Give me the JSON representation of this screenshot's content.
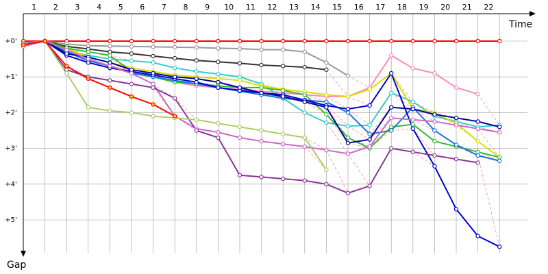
{
  "chart_data": {
    "type": "line",
    "xlabel": "Time",
    "ylabel": "Gap",
    "x_ticks": [
      "1",
      "2",
      "3",
      "4",
      "5",
      "6",
      "7",
      "8",
      "9",
      "10",
      "11",
      "12",
      "13",
      "14",
      "15",
      "16",
      "17",
      "18",
      "19",
      "20",
      "21",
      "22"
    ],
    "y_ticks": [
      "+0'",
      "+1'",
      "+2'",
      "+3'",
      "+4'",
      "+5'"
    ],
    "xlim": [
      1,
      24
    ],
    "ylim": [
      0,
      5.6
    ],
    "y_direction": "down",
    "grid": true,
    "colors": {
      "grid": "#999999",
      "axis": "#000000",
      "connector": "#ff8888"
    },
    "series": [
      {
        "color": "#ff0000",
        "fill": "#ffffff",
        "x": [
          1,
          2,
          3,
          4,
          5,
          6,
          7,
          8,
          9,
          10,
          11,
          12,
          13,
          14,
          15,
          16,
          17,
          18,
          19,
          20,
          21,
          22,
          23
        ],
        "y": [
          0,
          0,
          0,
          0,
          0,
          0,
          0,
          0,
          0,
          0,
          0,
          0,
          0,
          0,
          0,
          0,
          0,
          0,
          0,
          0,
          0,
          0,
          0
        ]
      },
      {
        "color": "#999999",
        "fill": "#ffffff",
        "x": [
          1,
          2,
          3,
          4,
          5,
          6,
          7,
          8,
          9,
          10,
          11,
          12,
          13,
          14,
          15,
          16
        ],
        "y": [
          0.05,
          0,
          0.08,
          0.13,
          0.14,
          0.15,
          0.16,
          0.17,
          0.18,
          0.2,
          0.21,
          0.24,
          0.24,
          0.3,
          0.6,
          0.97
        ]
      },
      {
        "color": "#333333",
        "fill": "#ffffff",
        "x": [
          1,
          2,
          3,
          4,
          5,
          6,
          7,
          8,
          9,
          10,
          11,
          12,
          13,
          14,
          15
        ],
        "y": [
          0.1,
          0,
          0.15,
          0.22,
          0.3,
          0.35,
          0.42,
          0.48,
          0.54,
          0.58,
          0.62,
          0.67,
          0.7,
          0.73,
          0.8
        ]
      },
      {
        "color": "#ff88bb",
        "fill": "#ffffff",
        "x": [
          1,
          2,
          3,
          4,
          5,
          6,
          7,
          8,
          9,
          10,
          11,
          12,
          13,
          14,
          15,
          16,
          17,
          18,
          19,
          20,
          21,
          22
        ],
        "y": [
          0.1,
          0,
          0.2,
          0.5,
          0.7,
          0.85,
          1.0,
          1.15,
          1.25,
          1.3,
          1.35,
          1.4,
          1.45,
          1.5,
          1.55,
          1.55,
          1.3,
          0.4,
          0.76,
          0.9,
          1.3,
          1.48
        ]
      },
      {
        "color": "#33cccc",
        "fill": "#ffffff",
        "x": [
          1,
          2,
          3,
          4,
          5,
          6,
          7,
          8,
          9,
          10,
          11,
          12,
          13,
          14,
          15,
          16,
          17,
          18,
          19,
          20,
          21,
          22,
          23
        ],
        "y": [
          0.1,
          0,
          0.3,
          0.4,
          0.5,
          0.55,
          0.6,
          0.75,
          0.85,
          0.92,
          1.0,
          1.2,
          1.6,
          2.0,
          2.28,
          2.38,
          2.35,
          1.45,
          1.7,
          2.1,
          2.25,
          2.4,
          2.35
        ]
      },
      {
        "color": "#dddd00",
        "fill": "#ffffff",
        "x": [
          1,
          2,
          3,
          4,
          5,
          6,
          7,
          8,
          9,
          10,
          11,
          12,
          13,
          14,
          15,
          16,
          17,
          18,
          19,
          20,
          21,
          22,
          23
        ],
        "y": [
          0.1,
          0,
          0.2,
          0.45,
          0.6,
          0.75,
          0.85,
          0.95,
          1.0,
          1.05,
          1.1,
          1.25,
          1.35,
          1.42,
          1.5,
          1.55,
          1.35,
          0.9,
          1.9,
          2.0,
          2.3,
          2.8,
          3.25
        ]
      },
      {
        "color": "#33bb33",
        "fill": "#ffffff",
        "x": [
          1,
          2,
          3,
          4,
          5,
          6,
          7,
          8,
          9,
          10,
          11,
          12,
          13,
          14,
          15,
          16,
          17,
          18,
          19,
          20,
          21,
          22,
          23
        ],
        "y": [
          0.1,
          0,
          0.2,
          0.3,
          0.4,
          0.85,
          1.0,
          1.15,
          1.2,
          1.25,
          1.3,
          1.3,
          1.38,
          1.5,
          2.05,
          2.7,
          3.0,
          2.4,
          2.33,
          2.8,
          2.95,
          3.1,
          3.25
        ]
      },
      {
        "color": "#1177dd",
        "fill": "#ffffff",
        "x": [
          1,
          2,
          3,
          4,
          5,
          6,
          7,
          8,
          9,
          10,
          11,
          12,
          13,
          14,
          15,
          16,
          17,
          18,
          19,
          20,
          21,
          22,
          23
        ],
        "y": [
          0.1,
          0,
          0.3,
          0.55,
          0.7,
          0.9,
          1.0,
          1.1,
          1.2,
          1.3,
          1.4,
          1.5,
          1.6,
          1.65,
          1.7,
          2.0,
          2.6,
          2.5,
          1.85,
          2.5,
          2.9,
          3.2,
          3.35
        ]
      },
      {
        "color": "#0000cc",
        "fill": "#ffffff",
        "x": [
          1,
          2,
          3,
          4,
          5,
          6,
          7,
          8,
          9,
          10,
          11,
          12,
          13,
          14,
          15,
          16,
          17,
          18,
          19,
          20,
          21,
          22,
          23
        ],
        "y": [
          0.1,
          0,
          0.4,
          0.6,
          0.75,
          0.85,
          0.95,
          1.05,
          1.15,
          1.3,
          1.38,
          1.45,
          1.5,
          1.65,
          1.8,
          1.9,
          1.8,
          0.9,
          2.45,
          3.5,
          4.7,
          5.45,
          5.75
        ]
      },
      {
        "color": "#000099",
        "fill": "#ffffff",
        "x": [
          1,
          2,
          3,
          4,
          5,
          6,
          7,
          8,
          9,
          10,
          11,
          12,
          13,
          14,
          15,
          16,
          17,
          18,
          19,
          20,
          21,
          22,
          23
        ],
        "y": [
          0.1,
          0,
          0.35,
          0.45,
          0.6,
          0.8,
          0.9,
          1.0,
          1.05,
          1.15,
          1.3,
          1.45,
          1.55,
          1.7,
          1.85,
          2.85,
          2.75,
          1.85,
          1.9,
          2.05,
          2.15,
          2.25,
          2.4
        ]
      },
      {
        "color": "#cc66cc",
        "fill": "#ffffff",
        "x": [
          1,
          2,
          3,
          4,
          5,
          6,
          7,
          8,
          9,
          10,
          11,
          12,
          13,
          14,
          15,
          16,
          17,
          18,
          19,
          20,
          21,
          22,
          23
        ],
        "y": [
          0.15,
          0,
          0.25,
          0.5,
          0.7,
          0.9,
          1.2,
          2.1,
          2.45,
          2.55,
          2.7,
          2.8,
          2.88,
          2.95,
          3.05,
          3.15,
          2.95,
          2.15,
          2.2,
          2.25,
          2.35,
          2.45,
          2.55
        ]
      },
      {
        "color": "#883399",
        "fill": "#ffffff",
        "x": [
          1,
          2,
          3,
          4,
          5,
          6,
          7,
          8,
          9,
          10,
          11,
          12,
          13,
          14,
          15,
          16,
          17,
          18,
          19,
          20,
          21,
          22
        ],
        "y": [
          0.1,
          0,
          0.8,
          1.0,
          1.1,
          1.2,
          1.3,
          1.6,
          2.5,
          2.7,
          3.75,
          3.8,
          3.85,
          3.9,
          4.0,
          4.25,
          4.05,
          3.0,
          3.1,
          3.2,
          3.3,
          3.4
        ]
      },
      {
        "color": "#aacc66",
        "fill": "#ffffff",
        "x": [
          1,
          2,
          3,
          4,
          5,
          6,
          7,
          8,
          9,
          10,
          11,
          12,
          13,
          14,
          15
        ],
        "y": [
          0.1,
          0,
          0.9,
          1.85,
          1.95,
          2.0,
          2.1,
          2.15,
          2.2,
          2.3,
          2.4,
          2.5,
          2.6,
          2.7,
          3.6
        ]
      },
      {
        "color": "#ff0000",
        "fill": "#ffcc00",
        "x": [
          1,
          2,
          3,
          4,
          5,
          6,
          7,
          8
        ],
        "y": [
          0.1,
          0,
          0.7,
          1.05,
          1.3,
          1.55,
          1.77,
          2.1
        ]
      }
    ]
  }
}
